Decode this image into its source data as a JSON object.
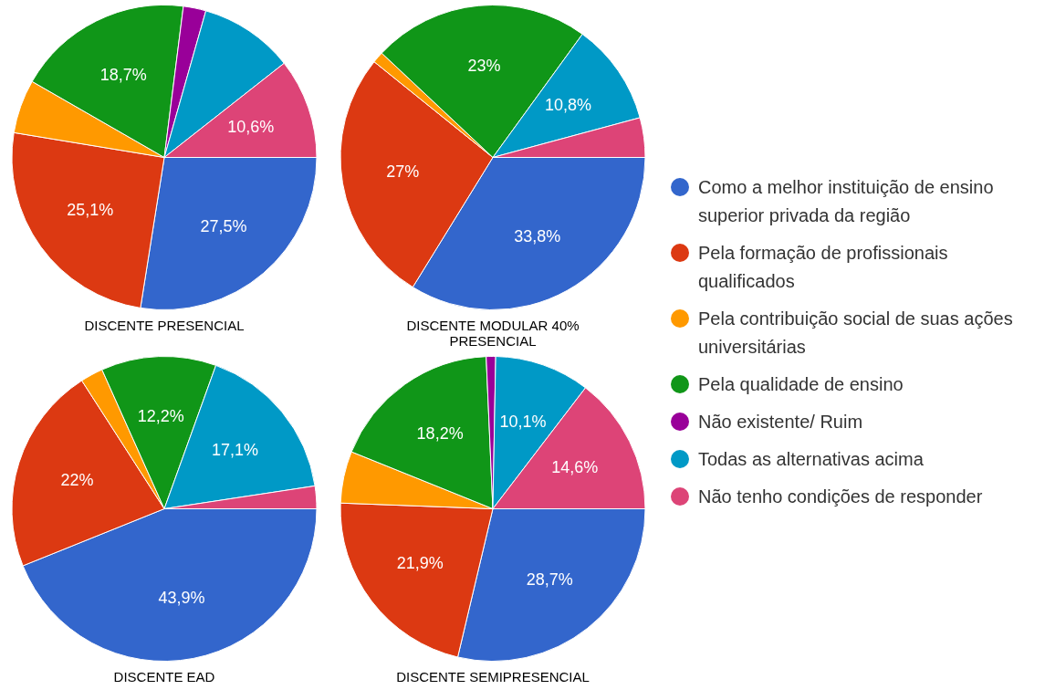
{
  "chart_data": [
    {
      "type": "pie",
      "title": "DISCENTE PRESENCIAL",
      "legend": "right",
      "categories": [
        "Como a melhor instituição de ensino superior privada da região",
        "Pela formação de profissionais qualificados",
        "Pela contribuição social de suas ações universitárias",
        "Pela qualidade de ensino",
        "Não existente/ Ruim",
        "Todas as alternativas acima",
        "Não tenho condições de responder"
      ],
      "colors": [
        "#3366cc",
        "#dc3912",
        "#ff9900",
        "#109618",
        "#990099",
        "#0099c6",
        "#dd4477"
      ],
      "values": [
        27.5,
        25.1,
        5.7,
        18.7,
        2.4,
        10.0,
        10.6
      ],
      "value_labels": [
        "27,5%",
        "25,1%",
        null,
        "18,7%",
        null,
        null,
        "10,6%"
      ]
    },
    {
      "type": "pie",
      "title": "DISCENTE MODULAR 40% PRESENCIAL",
      "categories": [
        null,
        null,
        null,
        null,
        null,
        null,
        null
      ],
      "colors": [
        "#3366cc",
        "#dc3912",
        "#ff9900",
        "#109618",
        "#990099",
        "#0099c6",
        "#dd4477"
      ],
      "values": [
        33.8,
        27,
        1.2,
        23,
        0,
        10.8,
        4.2
      ],
      "value_labels": [
        "33,8%",
        "27%",
        null,
        "23%",
        null,
        "10,8%",
        null
      ]
    },
    {
      "type": "pie",
      "title": "DISCENTE EAD",
      "categories": [
        null,
        null,
        null,
        null,
        null,
        null,
        null
      ],
      "colors": [
        "#3366cc",
        "#dc3912",
        "#ff9900",
        "#109618",
        "#990099",
        "#0099c6",
        "#dd4477"
      ],
      "values": [
        43.9,
        22,
        2.4,
        12.2,
        0,
        17.1,
        2.4
      ],
      "value_labels": [
        "43,9%",
        "22%",
        null,
        "12,2%",
        null,
        "17,1%",
        null
      ]
    },
    {
      "type": "pie",
      "title": "DISCENTE SEMIPRESENCIAL",
      "categories": [
        null,
        null,
        null,
        null,
        null,
        null,
        null
      ],
      "colors": [
        "#3366cc",
        "#dc3912",
        "#ff9900",
        "#109618",
        "#990099",
        "#0099c6",
        "#dd4477"
      ],
      "values": [
        28.7,
        21.9,
        5.5,
        18.2,
        1.0,
        10.1,
        14.6
      ],
      "value_labels": [
        "28,7%",
        "21,9%",
        null,
        "18,2%",
        null,
        "10,1%",
        "14,6%"
      ]
    }
  ]
}
